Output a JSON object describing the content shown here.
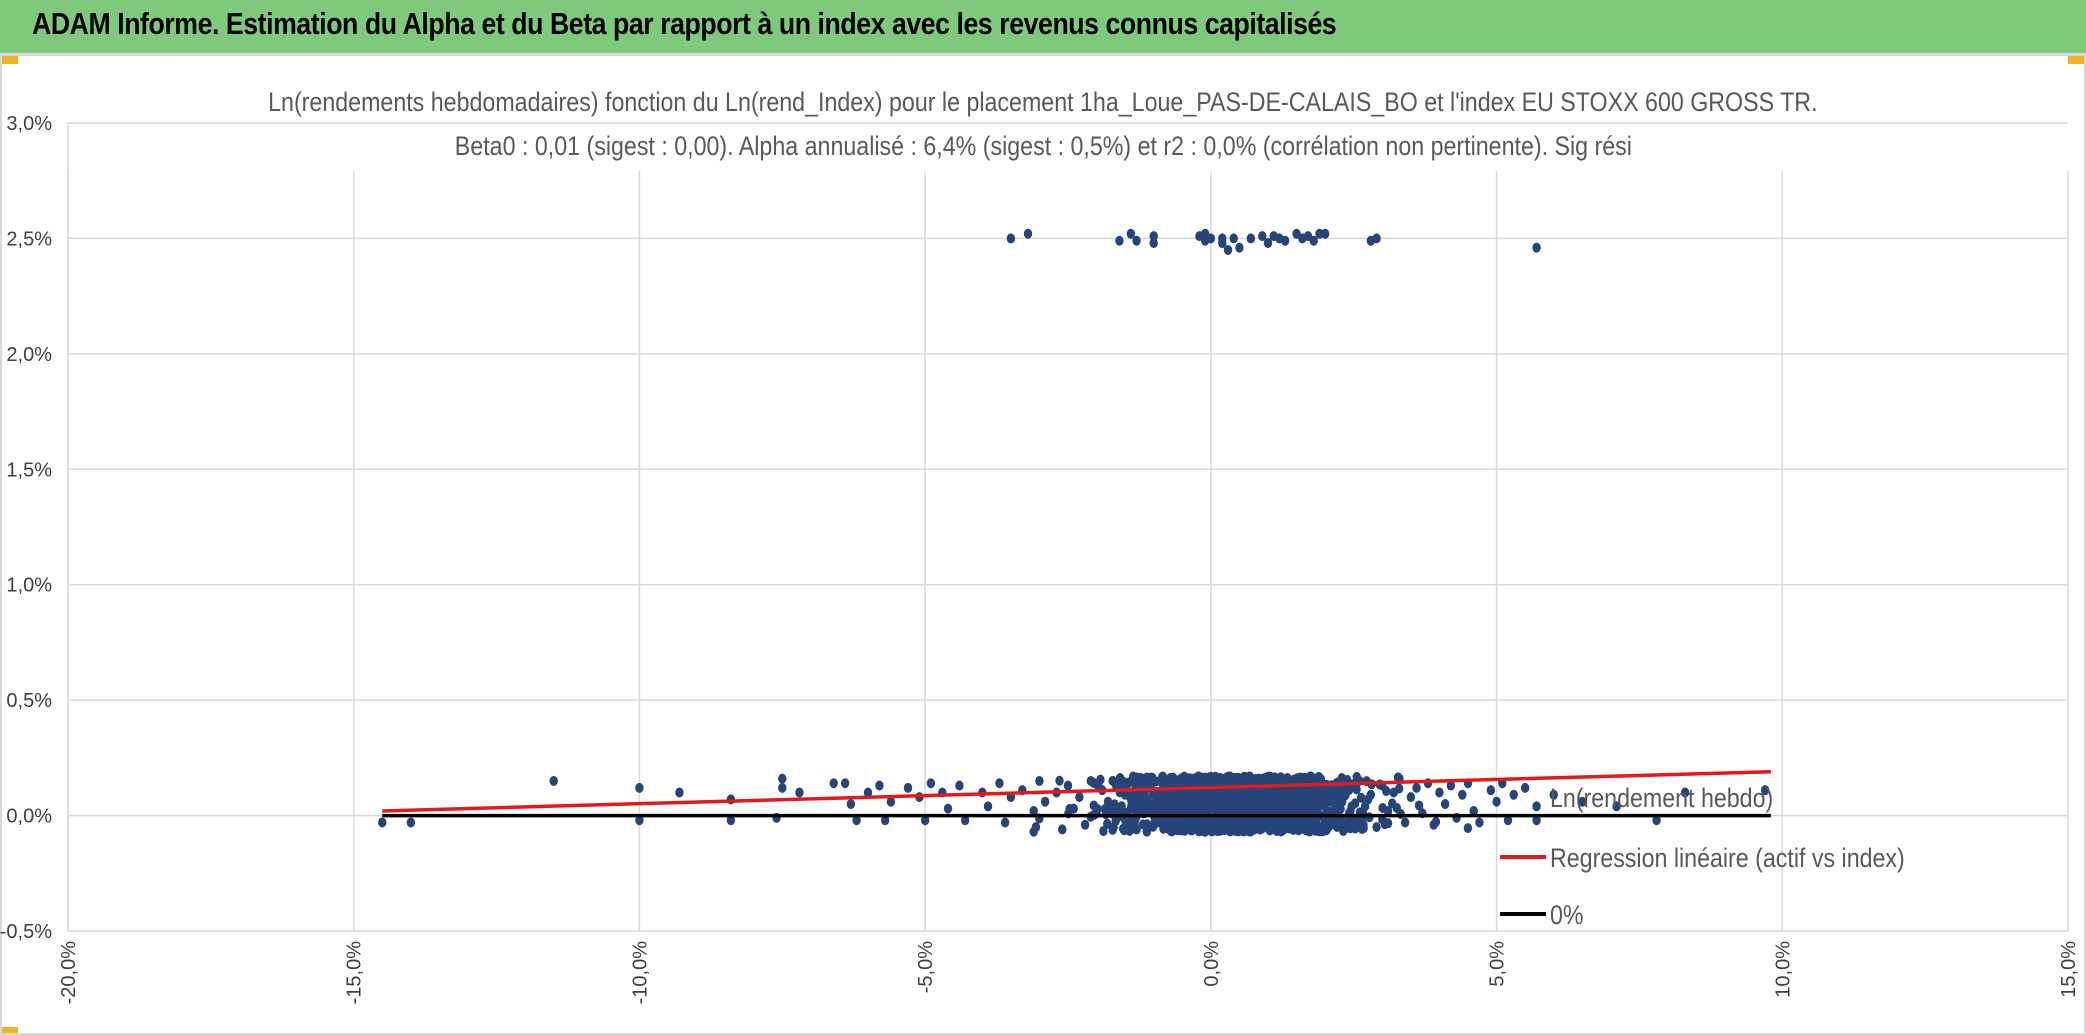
{
  "header": {
    "title": "ADAM Informe. Estimation du Alpha et du Beta par rapport à un index avec les revenus connus capitalisés"
  },
  "colors": {
    "header_bg": "#7ec97b",
    "points": "#264478",
    "regression": "#e31a1c",
    "zero_line": "#000000",
    "grid": "#d9d9d9"
  },
  "chart_data": {
    "type": "scatter",
    "title_line1": "Ln(rendements hebdomadaires) fonction du Ln(rend_Index) pour le placement 1ha_Loue_PAS-DE-CALAIS_BO et l'index EU STOXX 600 GROSS TR.",
    "title_line2": "Beta0 : 0,01 (sigest : 0,00). Alpha annualisé : 6,4% (sigest : 0,5%) et r2 : 0,0% (corrélation non pertinente). Sig rési",
    "xlim": [
      -0.2,
      0.15
    ],
    "ylim": [
      -0.005,
      0.03
    ],
    "x_ticks": [
      "-20,0%",
      "-15,0%",
      "-10,0%",
      "-5,0%",
      "0,0%",
      "5,0%",
      "10,0%",
      "15,0%"
    ],
    "y_ticks": [
      "-0,5%",
      "0,0%",
      "0,5%",
      "1,0%",
      "1,5%",
      "2,0%",
      "2,5%",
      "3,0%"
    ],
    "grid": true,
    "legend_position": "bottom-right",
    "series": [
      {
        "name": "Ln(rendement hebdo)",
        "kind": "scatter",
        "points": [
          [
            -0.145,
            -0.0003
          ],
          [
            -0.14,
            -0.0003
          ],
          [
            -0.115,
            0.0015
          ],
          [
            -0.1,
            0.0012
          ],
          [
            -0.1,
            -0.0002
          ],
          [
            -0.093,
            0.001
          ],
          [
            -0.084,
            0.0007
          ],
          [
            -0.084,
            -0.0002
          ],
          [
            -0.075,
            0.0016
          ],
          [
            -0.075,
            0.0012
          ],
          [
            -0.076,
            -0.0001
          ],
          [
            -0.072,
            0.001
          ],
          [
            -0.066,
            0.0014
          ],
          [
            -0.064,
            0.0014
          ],
          [
            -0.063,
            0.0005
          ],
          [
            -0.062,
            -0.0002
          ],
          [
            -0.06,
            0.001
          ],
          [
            -0.058,
            0.0013
          ],
          [
            -0.057,
            -0.0002
          ],
          [
            -0.056,
            0.0006
          ],
          [
            -0.053,
            0.0012
          ],
          [
            -0.051,
            0.0008
          ],
          [
            -0.05,
            -0.0002
          ],
          [
            -0.049,
            0.0014
          ],
          [
            -0.047,
            0.001
          ],
          [
            -0.046,
            0.0003
          ],
          [
            -0.044,
            0.0013
          ],
          [
            -0.043,
            -0.0002
          ],
          [
            -0.04,
            0.001
          ],
          [
            -0.039,
            0.0004
          ],
          [
            -0.037,
            0.0014
          ],
          [
            -0.036,
            -0.0003
          ],
          [
            -0.035,
            0.0008
          ],
          [
            -0.033,
            0.0011
          ],
          [
            -0.031,
            0.0002
          ],
          [
            -0.031,
            -0.0007
          ],
          [
            -0.03,
            0.0015
          ],
          [
            -0.029,
            0.0006
          ],
          [
            -0.027,
            0.001
          ],
          [
            -0.026,
            -0.0006
          ],
          [
            -0.025,
            0.0013
          ],
          [
            -0.024,
            0.0003
          ],
          [
            -0.023,
            0.0008
          ],
          [
            -0.022,
            -0.0004
          ],
          [
            -0.021,
            0.0015
          ],
          [
            -0.02,
            0.0001
          ],
          [
            -0.019,
            0.0011
          ],
          [
            -0.018,
            0.0006
          ],
          [
            -0.017,
            -0.0005
          ],
          [
            -0.016,
            0.0014
          ],
          [
            -0.015,
            0.0009
          ],
          [
            -0.014,
            0.0003
          ],
          [
            -0.013,
            -0.0006
          ],
          [
            -0.012,
            0.0016
          ],
          [
            -0.011,
            0.0012
          ],
          [
            -0.01,
            0.0004
          ],
          [
            -0.009,
            -0.0003
          ],
          [
            -0.008,
            0.0015
          ],
          [
            -0.007,
            0.0009
          ],
          [
            -0.006,
            0.0002
          ],
          [
            -0.005,
            -0.0005
          ],
          [
            -0.004,
            0.0013
          ],
          [
            -0.003,
            0.0007
          ],
          [
            -0.002,
            0.0
          ],
          [
            -0.001,
            0.0016
          ],
          [
            0.0,
            0.001
          ],
          [
            0.001,
            0.0004
          ],
          [
            0.002,
            -0.0006
          ],
          [
            0.003,
            0.0014
          ],
          [
            0.004,
            0.0008
          ],
          [
            0.005,
            0.0001
          ],
          [
            0.006,
            0.0016
          ],
          [
            0.007,
            -0.0004
          ],
          [
            0.008,
            0.0011
          ],
          [
            0.009,
            0.0005
          ],
          [
            0.01,
            0.0015
          ],
          [
            0.011,
            -0.0002
          ],
          [
            0.012,
            0.0009
          ],
          [
            0.013,
            0.0013
          ],
          [
            0.014,
            0.0003
          ],
          [
            0.015,
            -0.0006
          ],
          [
            0.016,
            0.0012
          ],
          [
            0.017,
            0.0007
          ],
          [
            0.018,
            0.0016
          ],
          [
            0.019,
            0.0
          ],
          [
            0.02,
            0.001
          ],
          [
            0.021,
            -0.0004
          ],
          [
            0.022,
            0.0014
          ],
          [
            0.023,
            0.0006
          ],
          [
            0.024,
            0.0011
          ],
          [
            0.025,
            -0.0002
          ],
          [
            0.026,
            0.0015
          ],
          [
            0.027,
            0.0004
          ],
          [
            0.028,
            0.0009
          ],
          [
            0.029,
            -0.0005
          ],
          [
            0.03,
            0.0013
          ],
          [
            0.031,
            0.0002
          ],
          [
            0.032,
            0.001
          ],
          [
            0.033,
            0.0016
          ],
          [
            0.034,
            -0.0003
          ],
          [
            0.035,
            0.0008
          ],
          [
            0.036,
            0.0012
          ],
          [
            0.037,
            0.0001
          ],
          [
            0.038,
            0.0014
          ],
          [
            0.039,
            -0.0004
          ],
          [
            0.04,
            0.001
          ],
          [
            0.041,
            0.0005
          ],
          [
            0.042,
            0.0013
          ],
          [
            0.043,
            -0.0001
          ],
          [
            0.044,
            0.0009
          ],
          [
            0.045,
            0.0014
          ],
          [
            0.046,
            0.0002
          ],
          [
            0.047,
            -0.0003
          ],
          [
            0.049,
            0.0011
          ],
          [
            0.05,
            0.0006
          ],
          [
            0.051,
            0.0014
          ],
          [
            0.052,
            -0.0002
          ],
          [
            0.053,
            0.0009
          ],
          [
            0.055,
            0.0012
          ],
          [
            0.057,
            0.0004
          ],
          [
            0.057,
            -0.0002
          ],
          [
            0.06,
            0.0009
          ],
          [
            0.065,
            0.0006
          ],
          [
            0.071,
            0.0004
          ],
          [
            0.078,
            -0.0002
          ],
          [
            0.083,
            0.001
          ],
          [
            0.097,
            0.0011
          ],
          [
            -0.035,
            0.025
          ],
          [
            -0.032,
            0.0252
          ],
          [
            -0.016,
            0.0249
          ],
          [
            -0.014,
            0.0252
          ],
          [
            -0.013,
            0.0249
          ],
          [
            -0.01,
            0.0251
          ],
          [
            -0.01,
            0.0248
          ],
          [
            -0.002,
            0.0251
          ],
          [
            -0.001,
            0.0252
          ],
          [
            -0.001,
            0.0249
          ],
          [
            0.0,
            0.025
          ],
          [
            0.002,
            0.0248
          ],
          [
            0.002,
            0.025
          ],
          [
            0.003,
            0.0245
          ],
          [
            0.004,
            0.025
          ],
          [
            0.005,
            0.0246
          ],
          [
            0.007,
            0.025
          ],
          [
            0.009,
            0.0251
          ],
          [
            0.01,
            0.0248
          ],
          [
            0.011,
            0.0251
          ],
          [
            0.012,
            0.025
          ],
          [
            0.013,
            0.0249
          ],
          [
            0.015,
            0.0252
          ],
          [
            0.016,
            0.025
          ],
          [
            0.017,
            0.0251
          ],
          [
            0.018,
            0.0249
          ],
          [
            0.019,
            0.0252
          ],
          [
            0.02,
            0.0252
          ],
          [
            0.028,
            0.0249
          ],
          [
            0.029,
            0.025
          ],
          [
            0.057,
            0.0246
          ]
        ],
        "dense_cluster": {
          "x_mean": 0.005,
          "x_sd": 0.014,
          "y_min": -0.0007,
          "y_max": 0.0017,
          "count": 1400
        }
      },
      {
        "name": "Regression linéaire (actif vs index)",
        "kind": "line",
        "points": [
          [
            -0.145,
            0.0002
          ],
          [
            0.098,
            0.0019
          ]
        ]
      },
      {
        "name": "0%",
        "kind": "line",
        "points": [
          [
            -0.145,
            0.0
          ],
          [
            0.098,
            0.0
          ]
        ]
      }
    ]
  }
}
